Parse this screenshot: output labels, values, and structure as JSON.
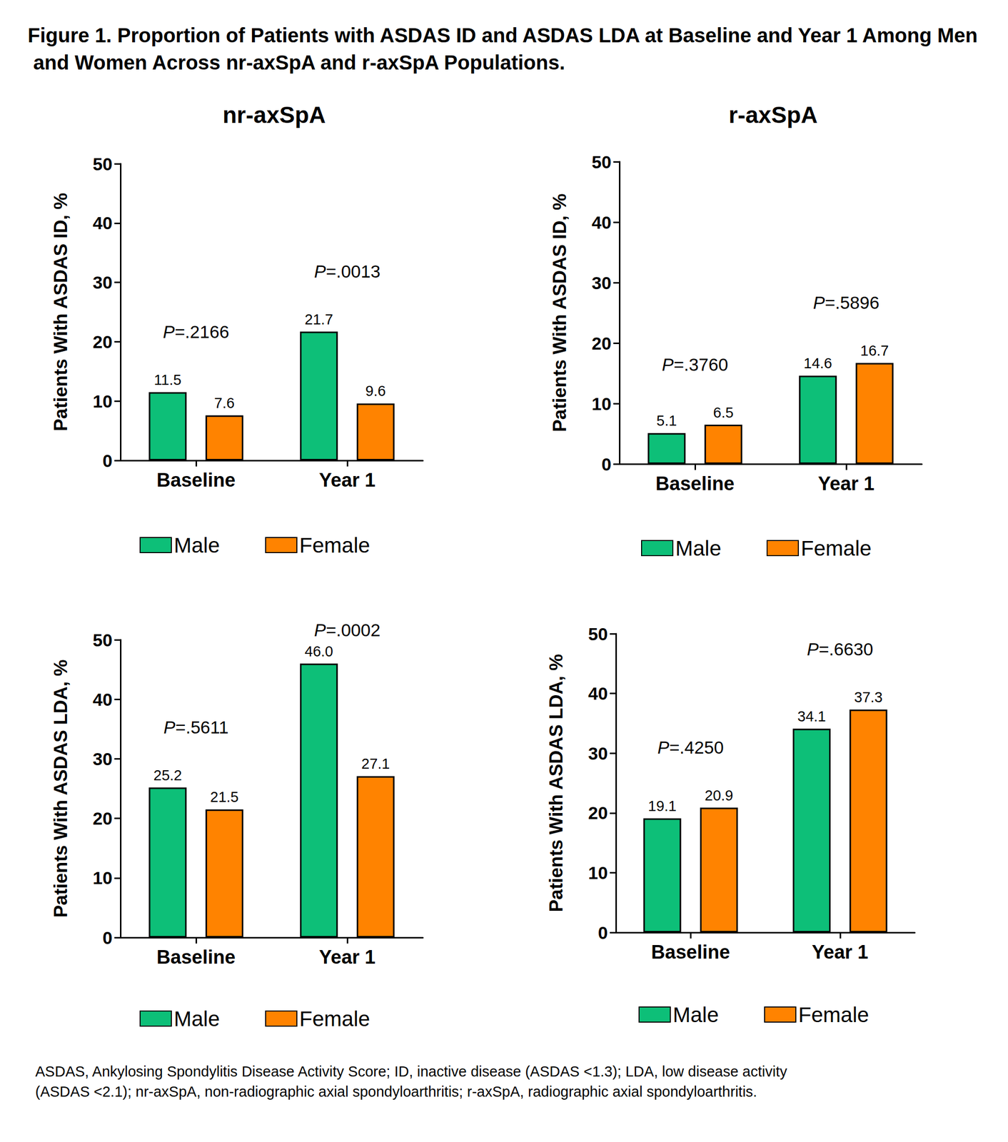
{
  "title": "Figure 1. Proportion of Patients with ASDAS ID and ASDAS LDA at Baseline and Year 1 Among Men and Women Across nr-axSpA and r-axSpA Populations.",
  "footnote": "ASDAS, Ankylosing Spondylitis Disease Activity Score; ID, inactive disease (ASDAS <1.3); LDA, low disease activity (ASDAS <2.1); nr-axSpA, non-radiographic axial spondyloarthritis; r-axSpA, radiographic axial spondyloarthritis.",
  "chart_data": [
    {
      "type": "bar",
      "title": "nr-axSpA",
      "ylabel": "Patients With ASDAS ID, %",
      "categories": [
        "Baseline",
        "Year 1"
      ],
      "series": [
        {
          "name": "Male",
          "color": "#0dbf78",
          "values": [
            11.5,
            21.7
          ],
          "value_labels": [
            "11.5",
            "21.7"
          ]
        },
        {
          "name": "Female",
          "color": "#ff8300",
          "values": [
            7.6,
            9.6
          ],
          "value_labels": [
            "7.6",
            "9.6"
          ]
        }
      ],
      "annotations": [
        {
          "category": "Baseline",
          "text": "P=.2166"
        },
        {
          "category": "Year 1",
          "text": "P=.0013"
        }
      ],
      "ylim": [
        0,
        50
      ],
      "yticks": [
        0,
        10,
        20,
        30,
        40,
        50
      ],
      "grid": false,
      "legend": "bottom",
      "data_labels": true
    },
    {
      "type": "bar",
      "title": "r-axSpA",
      "ylabel": "Patients With ASDAS ID, %",
      "categories": [
        "Baseline",
        "Year 1"
      ],
      "series": [
        {
          "name": "Male",
          "color": "#0dbf78",
          "values": [
            5.1,
            14.6
          ],
          "value_labels": [
            "5.1",
            "14.6"
          ]
        },
        {
          "name": "Female",
          "color": "#ff8300",
          "values": [
            6.5,
            16.7
          ],
          "value_labels": [
            "6.5",
            "16.7"
          ]
        }
      ],
      "annotations": [
        {
          "category": "Baseline",
          "text": "P=.3760"
        },
        {
          "category": "Year 1",
          "text": "P=.5896"
        }
      ],
      "ylim": [
        0,
        50
      ],
      "yticks": [
        0,
        10,
        20,
        30,
        40,
        50
      ],
      "grid": false,
      "legend": "bottom",
      "data_labels": true
    },
    {
      "type": "bar",
      "ylabel": "Patients With ASDAS LDA, %",
      "categories": [
        "Baseline",
        "Year 1"
      ],
      "series": [
        {
          "name": "Male",
          "color": "#0dbf78",
          "values": [
            25.2,
            46.0
          ],
          "value_labels": [
            "25.2",
            "46.0"
          ]
        },
        {
          "name": "Female",
          "color": "#ff8300",
          "values": [
            21.5,
            27.1
          ],
          "value_labels": [
            "21.5",
            "27.1"
          ]
        }
      ],
      "annotations": [
        {
          "category": "Baseline",
          "text": "P=.5611"
        },
        {
          "category": "Year 1",
          "text": "P=.0002"
        }
      ],
      "ylim": [
        0,
        50
      ],
      "yticks": [
        0,
        10,
        20,
        30,
        40,
        50
      ],
      "grid": false,
      "legend": "bottom",
      "data_labels": true
    },
    {
      "type": "bar",
      "ylabel": "Patients With ASDAS LDA, %",
      "categories": [
        "Baseline",
        "Year 1"
      ],
      "series": [
        {
          "name": "Male",
          "color": "#0dbf78",
          "values": [
            19.1,
            34.1
          ],
          "value_labels": [
            "19.1",
            "34.1"
          ]
        },
        {
          "name": "Female",
          "color": "#ff8300",
          "values": [
            20.9,
            37.3
          ],
          "value_labels": [
            "20.9",
            "37.3"
          ]
        }
      ],
      "annotations": [
        {
          "category": "Baseline",
          "text": "P=.4250"
        },
        {
          "category": "Year 1",
          "text": "P=.6630"
        }
      ],
      "ylim": [
        0,
        50
      ],
      "yticks": [
        0,
        10,
        20,
        30,
        40,
        50
      ],
      "grid": false,
      "legend": "bottom",
      "data_labels": true
    }
  ]
}
